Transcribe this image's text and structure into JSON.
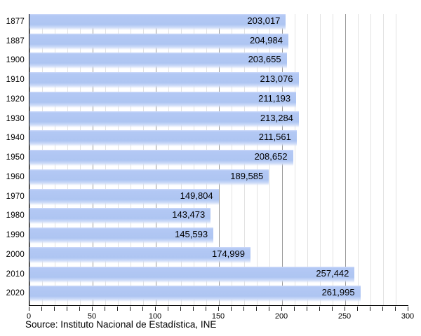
{
  "chart_data": {
    "type": "bar",
    "orientation": "horizontal",
    "title": "",
    "xlabel": "",
    "ylabel": "",
    "categories": [
      "1877",
      "1887",
      "1900",
      "1910",
      "1920",
      "1930",
      "1940",
      "1950",
      "1960",
      "1970",
      "1980",
      "1990",
      "2000",
      "2010",
      "2020"
    ],
    "values": [
      203017,
      204984,
      203655,
      213076,
      211193,
      213284,
      211561,
      208652,
      189585,
      149804,
      143473,
      145593,
      174999,
      257442,
      261995
    ],
    "value_labels": [
      "203,017",
      "204,984",
      "203,655",
      "213,076",
      "211,193",
      "213,284",
      "211,561",
      "208,652",
      "189,585",
      "149,804",
      "143,473",
      "145,593",
      "174,999",
      "257,442",
      "261,995"
    ],
    "xlim": [
      0,
      300
    ],
    "x_unit_divisor": 1000,
    "x_ticks": [
      0,
      50,
      100,
      150,
      200,
      250,
      300
    ],
    "x_tick_labels": [
      "0",
      "50",
      "100",
      "150",
      "200",
      "250",
      "300"
    ],
    "grid": "vertical",
    "minor_grid_step": 10,
    "major_grid_step": 50,
    "legend_position": "none",
    "colors": {
      "bar_fill": "#aec5f2",
      "bar_highlight": "#ccdaf9",
      "grid_minor": "#e2e2e2",
      "grid_major": "#9a9a9a",
      "axis": "#000000",
      "text": "#000000",
      "background": "#ffffff"
    }
  },
  "footer": {
    "source_note": "Source: Instituto Nacional de Estadística, INE"
  }
}
